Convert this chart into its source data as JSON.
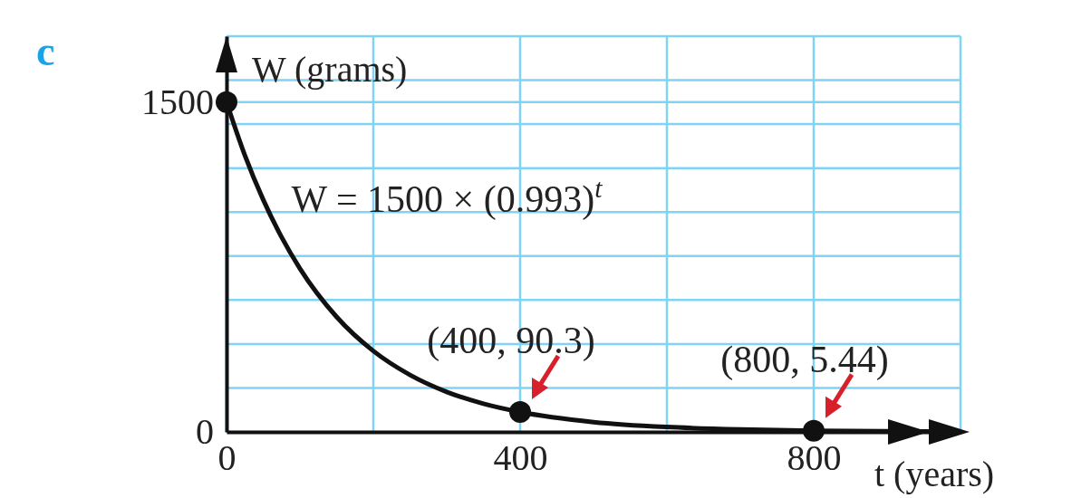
{
  "chart_data": {
    "type": "line",
    "title": "c",
    "xlabel": "t (years)",
    "ylabel": "W (grams)",
    "xlim": [
      0,
      1000
    ],
    "ylim": [
      0,
      1800
    ],
    "xticks": [
      0,
      {
        "value": 200,
        "label": null
      },
      400,
      {
        "value": 600,
        "label": null
      },
      800,
      {
        "value": 1000,
        "label": null
      }
    ],
    "yticks": [
      0,
      {
        "value": 200,
        "label": null
      },
      {
        "value": 400,
        "label": null
      },
      {
        "value": 600,
        "label": null
      },
      {
        "value": 800,
        "label": null
      },
      {
        "value": 1000,
        "label": null
      },
      {
        "value": 1200,
        "label": null
      },
      {
        "value": 1400,
        "label": null
      },
      1500,
      {
        "value": 1600,
        "label": null
      },
      {
        "value": 1800,
        "label": null
      }
    ],
    "grid": true,
    "series": [
      {
        "color": "#111111",
        "marker": "none",
        "line_style": "solid",
        "x": [
          0,
          25,
          50,
          75,
          100,
          150,
          200,
          250,
          300,
          350,
          400,
          500,
          600,
          700,
          800,
          900,
          1000
        ],
        "values": [
          1500,
          1258,
          1056,
          886,
          743,
          523,
          368,
          259,
          182,
          128,
          90.3,
          44.7,
          22.2,
          11.0,
          5.44,
          2.7,
          1.3
        ]
      },
      {
        "type": "scatter",
        "color": "#111111",
        "marker": "circle",
        "x": [
          0,
          400,
          800
        ],
        "values": [
          1500,
          90.3,
          5.44
        ]
      }
    ],
    "annotations": [
      "W = 1500 × (0.993)$^{t}$",
      {
        "text": "(400, 90.3)",
        "x": 400,
        "y": 90.3
      },
      {
        "text": "(800, 5.44)",
        "x": 800,
        "y": 5.44
      }
    ]
  }
}
